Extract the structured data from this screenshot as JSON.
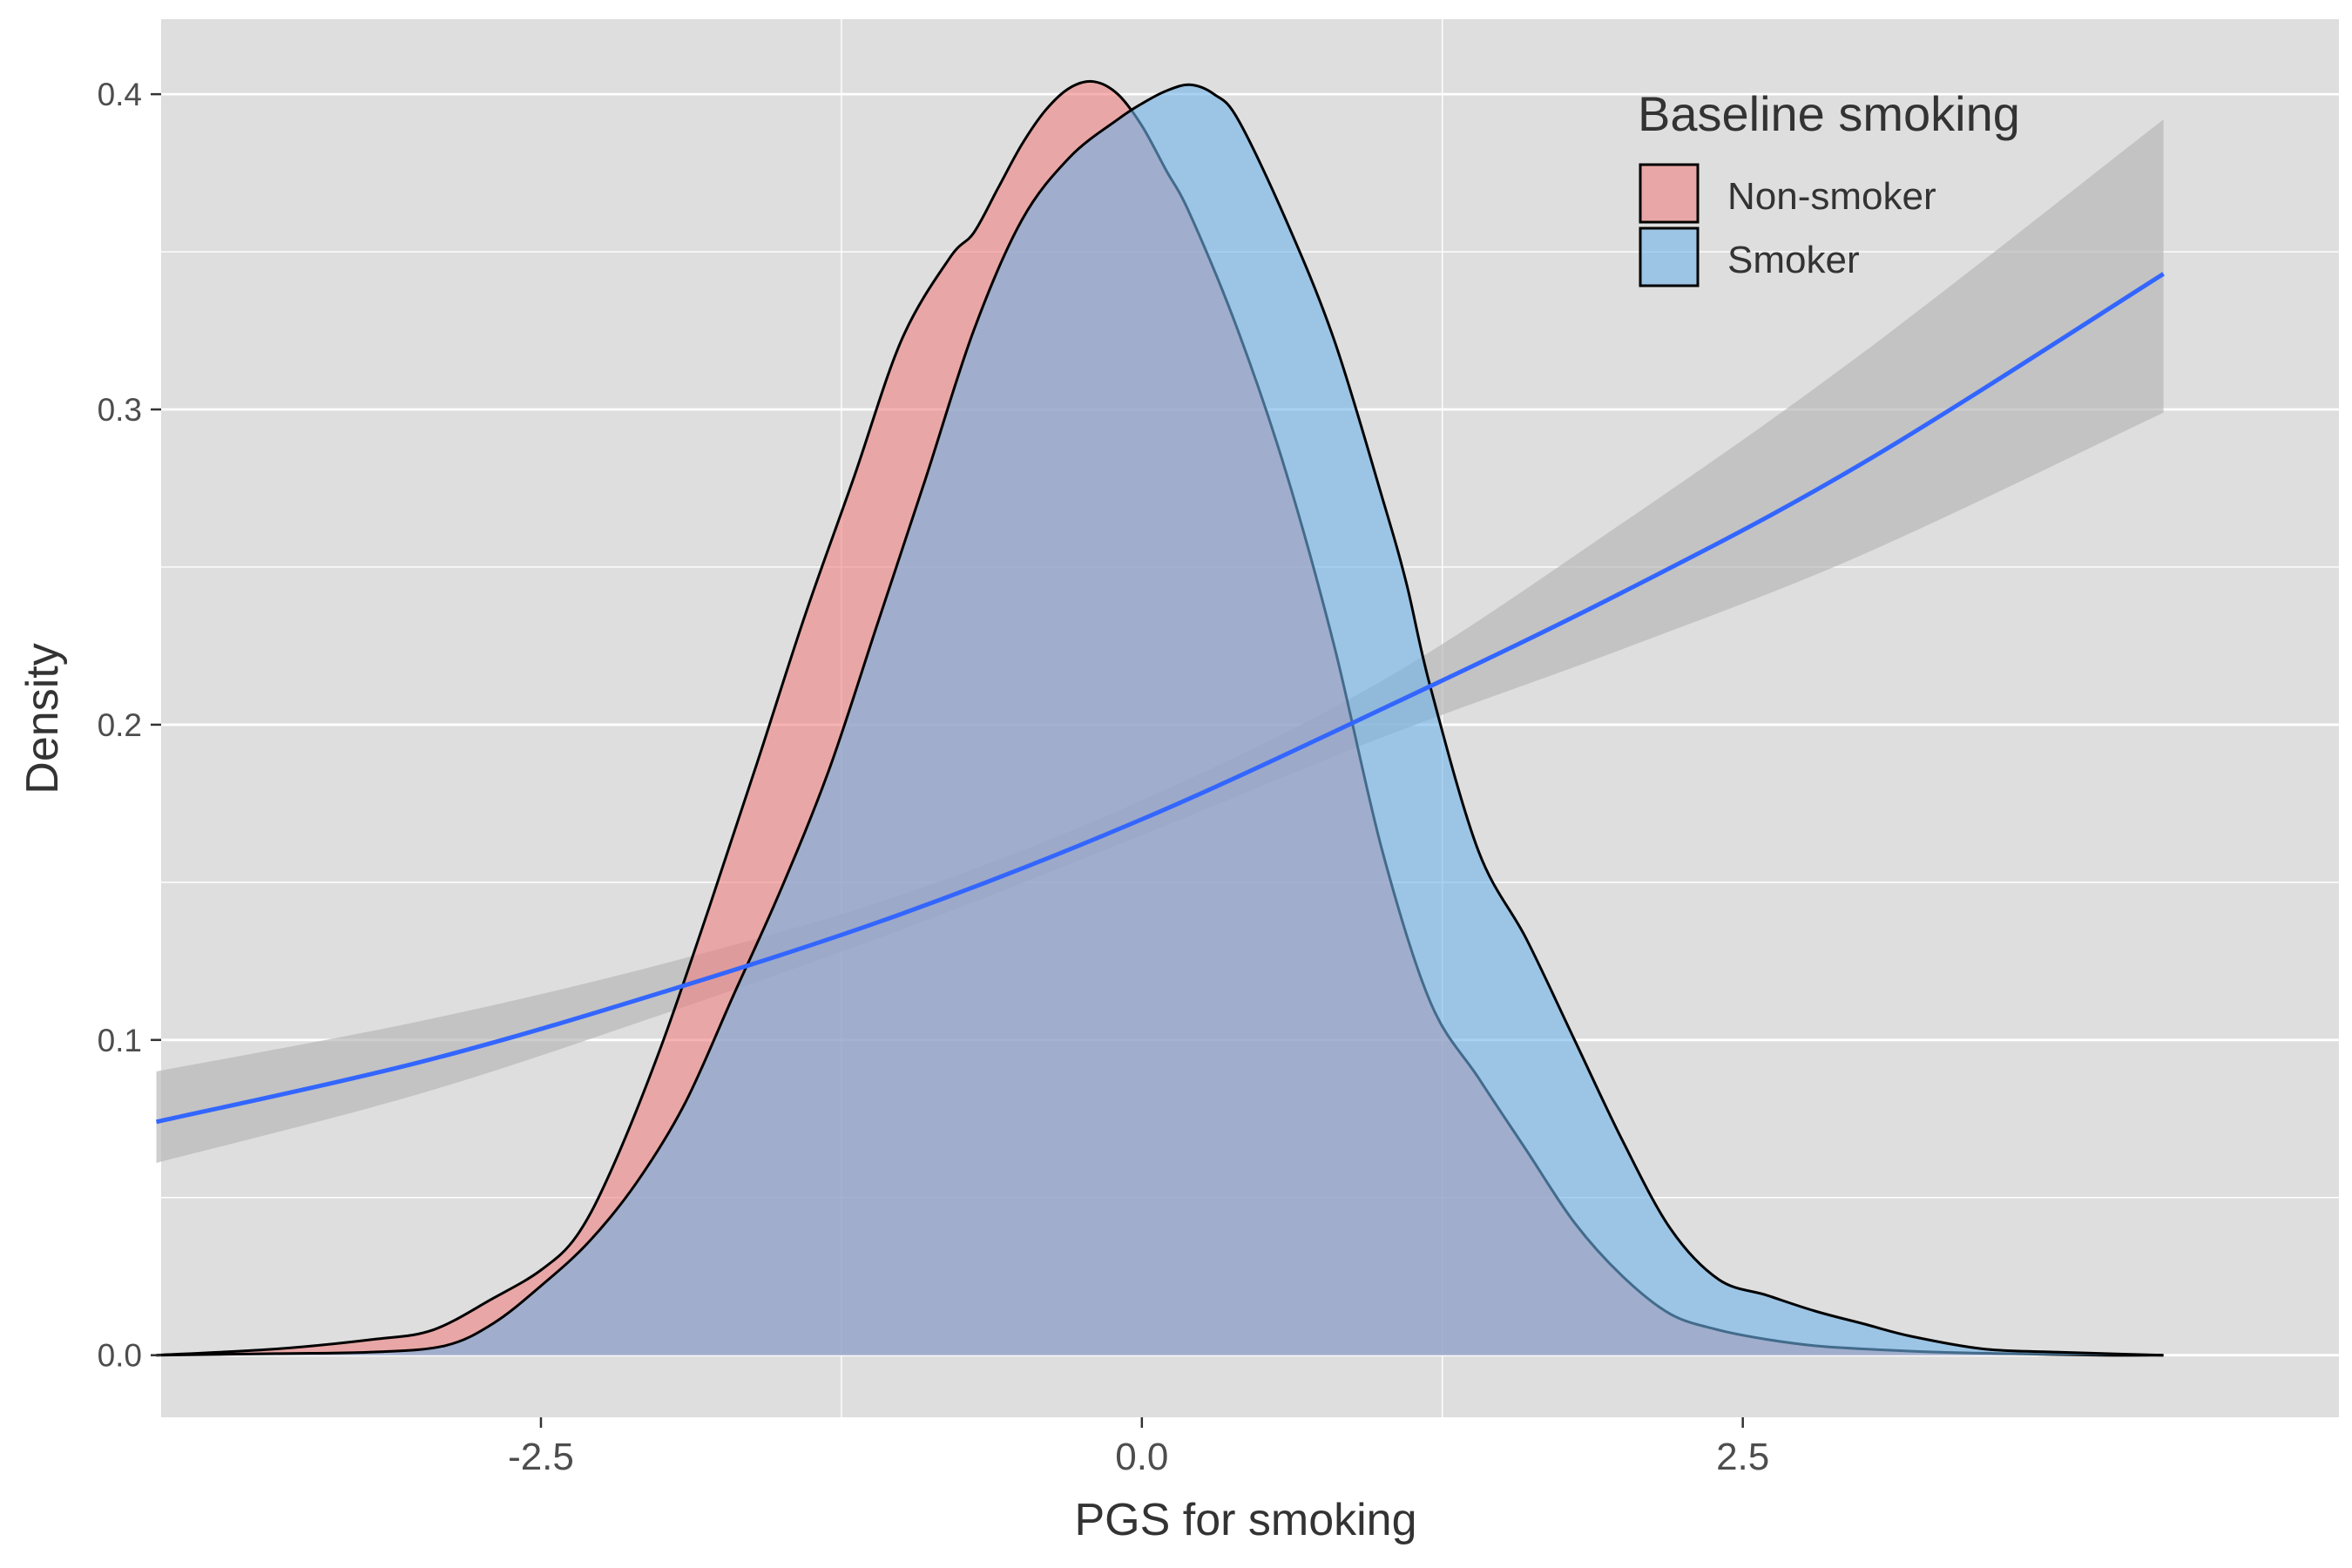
{
  "chart_data": {
    "type": "area",
    "title": "",
    "xlabel": "PGS for smoking",
    "ylabel": "Density",
    "xlim": [
      -4.08,
      4.98
    ],
    "ylim": [
      -0.0197,
      0.4238
    ],
    "x_ticks": [
      -2.5,
      0.0,
      2.5
    ],
    "x_tick_labels": [
      "-2.5",
      "0.0",
      "2.5"
    ],
    "y_ticks": [
      0.0,
      0.1,
      0.2,
      0.3,
      0.4
    ],
    "y_tick_labels": [
      "0.0",
      "0.1",
      "0.2",
      "0.3",
      "0.4"
    ],
    "grid": true,
    "background": "#dedede",
    "legend": {
      "title": "Baseline smoking",
      "placement": "top-right",
      "entries": [
        "Non-smoker",
        "Smoker"
      ]
    },
    "colors": {
      "non_smoker_fill": "#f08080",
      "smoker_fill": "#6fb2e8",
      "overlap_fill": "#9fa6cc",
      "trend_line": "#3366ff",
      "ribbon": "#b4b4b4"
    },
    "series": [
      {
        "name": "Non-smoker",
        "kind": "density",
        "x": [
          -4.1,
          -3.6,
          -3.2,
          -2.95,
          -2.7,
          -2.5,
          -2.35,
          -2.2,
          -2.0,
          -1.8,
          -1.6,
          -1.4,
          -1.2,
          -1.0,
          -0.8,
          -0.7,
          -0.6,
          -0.5,
          -0.4,
          -0.3,
          -0.2,
          -0.1,
          0.0,
          0.1,
          0.2,
          0.4,
          0.6,
          0.8,
          1.0,
          1.2,
          1.4,
          1.6,
          1.8,
          2.0,
          2.2,
          2.4,
          2.6,
          2.8,
          3.0,
          3.3,
          3.6,
          4.0,
          4.25
        ],
        "y": [
          0.0,
          0.002,
          0.005,
          0.008,
          0.018,
          0.027,
          0.038,
          0.06,
          0.098,
          0.142,
          0.188,
          0.235,
          0.278,
          0.322,
          0.348,
          0.356,
          0.37,
          0.384,
          0.395,
          0.402,
          0.404,
          0.4,
          0.39,
          0.376,
          0.362,
          0.325,
          0.28,
          0.225,
          0.16,
          0.112,
          0.088,
          0.065,
          0.042,
          0.025,
          0.013,
          0.008,
          0.005,
          0.003,
          0.002,
          0.001,
          0.0005,
          0.0,
          0.0
        ]
      },
      {
        "name": "Smoker",
        "kind": "density",
        "x": [
          -4.1,
          -3.6,
          -3.2,
          -2.9,
          -2.7,
          -2.5,
          -2.3,
          -2.1,
          -1.9,
          -1.7,
          -1.5,
          -1.3,
          -1.1,
          -0.9,
          -0.7,
          -0.5,
          -0.3,
          -0.1,
          0.0,
          0.1,
          0.2,
          0.3,
          0.4,
          0.6,
          0.8,
          1.0,
          1.1,
          1.2,
          1.4,
          1.6,
          1.8,
          2.0,
          2.2,
          2.4,
          2.6,
          2.8,
          3.0,
          3.2,
          3.5,
          3.8,
          4.1,
          4.25
        ],
        "y": [
          0.0,
          0.0005,
          0.001,
          0.003,
          0.01,
          0.022,
          0.036,
          0.055,
          0.08,
          0.114,
          0.148,
          0.186,
          0.232,
          0.278,
          0.325,
          0.36,
          0.38,
          0.392,
          0.397,
          0.401,
          0.403,
          0.4,
          0.392,
          0.36,
          0.322,
          0.272,
          0.245,
          0.212,
          0.16,
          0.132,
          0.1,
          0.068,
          0.04,
          0.024,
          0.019,
          0.014,
          0.01,
          0.006,
          0.002,
          0.001,
          0.0003,
          0.0
        ]
      },
      {
        "kind": "trend",
        "x": [
          -4.1,
          -3.0,
          -2.0,
          -1.0,
          0.0,
          1.0,
          2.0,
          3.0,
          4.25
        ],
        "y": [
          0.074,
          0.093,
          0.115,
          0.14,
          0.17,
          0.205,
          0.242,
          0.283,
          0.343
        ],
        "lower": [
          0.061,
          0.083,
          0.108,
          0.135,
          0.165,
          0.196,
          0.224,
          0.254,
          0.299
        ],
        "upper": [
          0.09,
          0.106,
          0.124,
          0.146,
          0.176,
          0.214,
          0.264,
          0.318,
          0.392
        ]
      }
    ]
  }
}
